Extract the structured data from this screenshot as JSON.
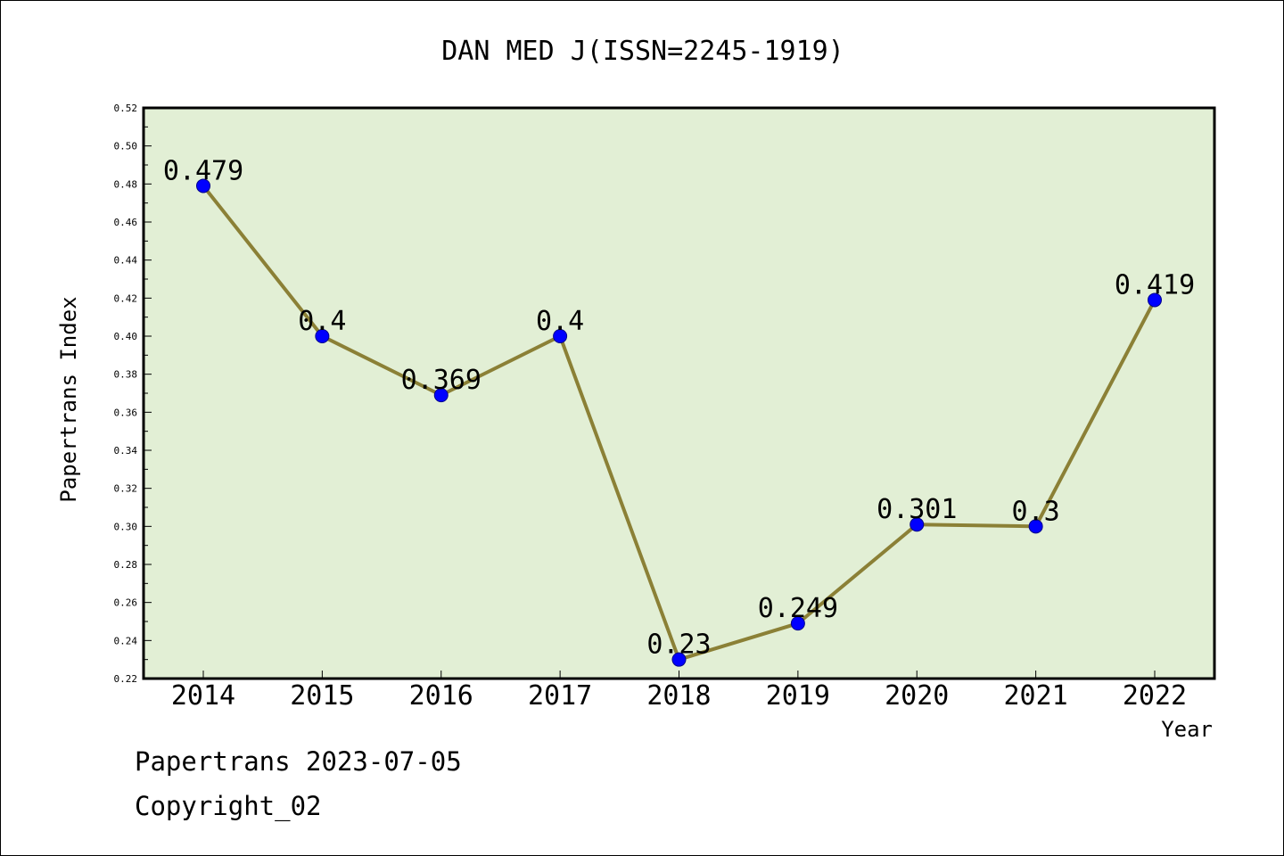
{
  "chart_data": {
    "type": "line",
    "title": "DAN MED J(ISSN=2245-1919)",
    "xlabel": "Year",
    "ylabel": "Papertrans Index",
    "categories": [
      "2014",
      "2015",
      "2016",
      "2017",
      "2018",
      "2019",
      "2020",
      "2021",
      "2022"
    ],
    "values": [
      0.479,
      0.4,
      0.369,
      0.4,
      0.23,
      0.249,
      0.301,
      0.3,
      0.419
    ],
    "data_labels": [
      "0.479",
      "0.4",
      "0.369",
      "0.4",
      "0.23",
      "0.249",
      "0.301",
      "0.3",
      "0.419"
    ],
    "ylim": [
      0.22,
      0.52
    ],
    "yticks": [
      "0.22",
      "0.24",
      "0.26",
      "0.28",
      "0.30",
      "0.32",
      "0.34",
      "0.36",
      "0.38",
      "0.40",
      "0.42",
      "0.44",
      "0.46",
      "0.48",
      "0.50",
      "0.52"
    ],
    "grid": false,
    "legend": "none",
    "colors": {
      "plot_background": "#e2efd5",
      "line": "#8b8036",
      "marker": "#0000ff"
    }
  },
  "footer": {
    "line1": "Papertrans 2023-07-05",
    "line2": "Copyright_02"
  }
}
